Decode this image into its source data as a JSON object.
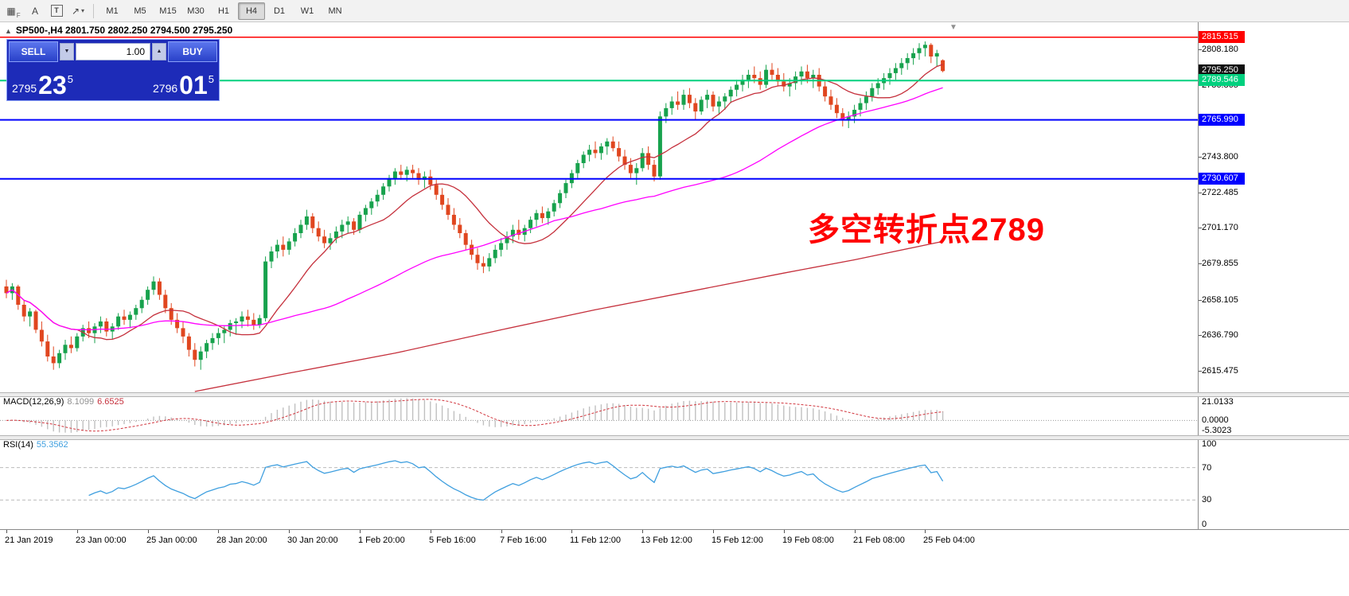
{
  "colors": {
    "up": "#17a24d",
    "down": "#e0461f",
    "ma_fast": "#c5303c",
    "ma_mid": "#ff00ff",
    "ma_slow": "#c5303c",
    "line_red": "#ff0000",
    "line_green": "#00d07e",
    "line_blue": "#0000ff",
    "price_badge_black": "#111111",
    "macd_hist": "#c0c0c0",
    "macd_signal": "#d1343c",
    "rsi_line": "#3f9fdf",
    "annotation": "#ff0000",
    "trade_panel_bg": "#1d2bb8",
    "trade_border": "#8aa0f8",
    "trade_btn_light": "#5b76ee",
    "trade_btn_dark": "#2840c8"
  },
  "toolbar": {
    "tools": [
      {
        "id": "chart-grid",
        "glyph": "▦",
        "sub": "F"
      },
      {
        "id": "text-label",
        "glyph": "A"
      },
      {
        "id": "text-box",
        "glyph": "T",
        "boxed": true
      },
      {
        "id": "line-studies",
        "glyph": "↗",
        "dropdown": true
      }
    ],
    "timeframes": [
      "M1",
      "M5",
      "M15",
      "M30",
      "H1",
      "H4",
      "D1",
      "W1",
      "MN"
    ],
    "active_timeframe": "H4"
  },
  "symbol_header": {
    "collapse_icon": "▲",
    "symbol": "SP500-,H4",
    "ohlc": "2801.750 2802.250 2794.500 2795.250"
  },
  "trade_panel": {
    "sell_label": "SELL",
    "buy_label": "BUY",
    "lot": "1.00",
    "down_glyph": "▼",
    "up_glyph": "▲",
    "sell_small": "2795",
    "sell_big": "23",
    "sell_sup": "5",
    "buy_small": "2796",
    "buy_big": "01",
    "buy_sup": "5"
  },
  "annotation": {
    "text": "多空转折点2789"
  },
  "glyphs": {
    "shift_marker": "▼"
  },
  "price_axis": {
    "gridline_labels": [
      "2808.180",
      "2786.865",
      "2765.550",
      "2743.800",
      "2722.485",
      "2701.170",
      "2679.855",
      "2658.105",
      "2636.790",
      "2615.475"
    ],
    "line_badges": [
      {
        "price": "2815.515",
        "value": 2815.515,
        "color": "#ff0000",
        "text_color": "#ffffff"
      },
      {
        "price": "2795.250",
        "value": 2795.25,
        "color": "#111111",
        "text_color": "#ffffff"
      },
      {
        "price": "2789.546",
        "value": 2789.546,
        "color": "#00d07e",
        "text_color": "#ffffff"
      },
      {
        "price": "2765.990",
        "value": 2765.99,
        "color": "#0000ff",
        "text_color": "#ffffff"
      },
      {
        "price": "2730.607",
        "value": 2730.607,
        "color": "#0000ff",
        "text_color": "#ffffff"
      }
    ]
  },
  "hlines": [
    {
      "value": 2815.515,
      "color": "#ff0000",
      "width": 1.5
    },
    {
      "value": 2789.546,
      "color": "#00d07e",
      "width": 2
    },
    {
      "value": 2765.99,
      "color": "#0000ff",
      "width": 2
    },
    {
      "value": 2730.607,
      "color": "#0000ff",
      "width": 2
    }
  ],
  "macd_panel": {
    "label": "MACD(12,26,9)",
    "value1": "8.1099",
    "value2": "6.6525",
    "axis": [
      "21.0133",
      "0.0000",
      "-5.3023"
    ]
  },
  "rsi_panel": {
    "label": "RSI(14)",
    "value": "55.3562",
    "axis": [
      "100",
      "70",
      "30",
      "0"
    ],
    "levels": [
      70,
      30
    ]
  },
  "time_axis": {
    "labels": [
      {
        "idx": 0,
        "text": "21 Jan 2019"
      },
      {
        "idx": 12,
        "text": "23 Jan 00:00"
      },
      {
        "idx": 24,
        "text": "25 Jan 00:00"
      },
      {
        "idx": 36,
        "text": "28 Jan 20:00"
      },
      {
        "idx": 48,
        "text": "30 Jan 20:00"
      },
      {
        "idx": 60,
        "text": "1 Feb 20:00"
      },
      {
        "idx": 72,
        "text": "5 Feb 16:00"
      },
      {
        "idx": 84,
        "text": "7 Feb 16:00"
      },
      {
        "idx": 96,
        "text": "11 Feb 12:00"
      },
      {
        "idx": 108,
        "text": "13 Feb 12:00"
      },
      {
        "idx": 120,
        "text": "15 Feb 12:00"
      },
      {
        "idx": 132,
        "text": "19 Feb 08:00"
      },
      {
        "idx": 144,
        "text": "21 Feb 08:00"
      },
      {
        "idx": 156,
        "text": "25 Feb 04:00"
      }
    ]
  },
  "chart_data": {
    "type": "candlestick",
    "symbol": "SP500-",
    "timeframe": "H4",
    "last_candle": {
      "open": 2801.75,
      "high": 2802.25,
      "low": 2794.5,
      "close": 2795.25
    },
    "price_max": 2824.5,
    "price_min": 2602.5,
    "ma_fast_period": 13,
    "ma_mid_period": 50,
    "ma_long_waypoints": [
      [
        32,
        2603
      ],
      [
        48,
        2614
      ],
      [
        66,
        2626
      ],
      [
        84,
        2640
      ],
      [
        100,
        2652
      ],
      [
        116,
        2663
      ],
      [
        132,
        2674
      ],
      [
        144,
        2682
      ],
      [
        159,
        2693
      ]
    ],
    "candles": [
      [
        2666,
        2670,
        2659,
        2662
      ],
      [
        2662,
        2668,
        2658,
        2666
      ],
      [
        2666,
        2667,
        2652,
        2655
      ],
      [
        2655,
        2658,
        2645,
        2648
      ],
      [
        2648,
        2653,
        2642,
        2651
      ],
      [
        2651,
        2652,
        2638,
        2640
      ],
      [
        2640,
        2645,
        2630,
        2633
      ],
      [
        2633,
        2637,
        2621,
        2624
      ],
      [
        2624,
        2630,
        2616,
        2620
      ],
      [
        2620,
        2628,
        2617,
        2626
      ],
      [
        2626,
        2634,
        2622,
        2631
      ],
      [
        2631,
        2636,
        2626,
        2629
      ],
      [
        2629,
        2638,
        2627,
        2636
      ],
      [
        2636,
        2643,
        2633,
        2641
      ],
      [
        2641,
        2645,
        2635,
        2638
      ],
      [
        2638,
        2644,
        2632,
        2642
      ],
      [
        2642,
        2648,
        2638,
        2645
      ],
      [
        2645,
        2647,
        2636,
        2639
      ],
      [
        2639,
        2644,
        2634,
        2642
      ],
      [
        2642,
        2650,
        2640,
        2648
      ],
      [
        2648,
        2652,
        2643,
        2646
      ],
      [
        2646,
        2651,
        2641,
        2649
      ],
      [
        2649,
        2655,
        2646,
        2653
      ],
      [
        2653,
        2660,
        2650,
        2658
      ],
      [
        2658,
        2666,
        2655,
        2664
      ],
      [
        2664,
        2672,
        2661,
        2669
      ],
      [
        2669,
        2671,
        2658,
        2661
      ],
      [
        2661,
        2664,
        2650,
        2653
      ],
      [
        2653,
        2656,
        2643,
        2646
      ],
      [
        2646,
        2650,
        2638,
        2641
      ],
      [
        2641,
        2645,
        2632,
        2636
      ],
      [
        2636,
        2638,
        2624,
        2628
      ],
      [
        2628,
        2632,
        2618,
        2622
      ],
      [
        2622,
        2630,
        2616,
        2627
      ],
      [
        2627,
        2634,
        2623,
        2632
      ],
      [
        2632,
        2638,
        2628,
        2635
      ],
      [
        2635,
        2641,
        2631,
        2638
      ],
      [
        2638,
        2642,
        2632,
        2640
      ],
      [
        2640,
        2646,
        2636,
        2644
      ],
      [
        2644,
        2647,
        2637,
        2645
      ],
      [
        2645,
        2651,
        2641,
        2648
      ],
      [
        2648,
        2652,
        2642,
        2646
      ],
      [
        2646,
        2650,
        2640,
        2643
      ],
      [
        2643,
        2649,
        2641,
        2647
      ],
      [
        2647,
        2684,
        2645,
        2681
      ],
      [
        2681,
        2690,
        2677,
        2687
      ],
      [
        2687,
        2694,
        2683,
        2691
      ],
      [
        2691,
        2696,
        2684,
        2688
      ],
      [
        2688,
        2695,
        2685,
        2693
      ],
      [
        2693,
        2701,
        2690,
        2698
      ],
      [
        2698,
        2706,
        2695,
        2703
      ],
      [
        2703,
        2712,
        2700,
        2708
      ],
      [
        2708,
        2710,
        2698,
        2701
      ],
      [
        2701,
        2705,
        2693,
        2696
      ],
      [
        2696,
        2700,
        2689,
        2692
      ],
      [
        2692,
        2698,
        2688,
        2695
      ],
      [
        2695,
        2702,
        2692,
        2699
      ],
      [
        2699,
        2706,
        2695,
        2703
      ],
      [
        2703,
        2708,
        2698,
        2705
      ],
      [
        2705,
        2707,
        2697,
        2700
      ],
      [
        2700,
        2711,
        2698,
        2709
      ],
      [
        2709,
        2715,
        2705,
        2713
      ],
      [
        2713,
        2719,
        2709,
        2717
      ],
      [
        2717,
        2724,
        2714,
        2721
      ],
      [
        2721,
        2728,
        2718,
        2726
      ],
      [
        2726,
        2733,
        2723,
        2731
      ],
      [
        2731,
        2737,
        2727,
        2735
      ],
      [
        2735,
        2739,
        2730,
        2733
      ],
      [
        2733,
        2738,
        2729,
        2736
      ],
      [
        2736,
        2739,
        2731,
        2734
      ],
      [
        2734,
        2737,
        2727,
        2730
      ],
      [
        2730,
        2735,
        2725,
        2732
      ],
      [
        2732,
        2736,
        2724,
        2727
      ],
      [
        2727,
        2730,
        2718,
        2721
      ],
      [
        2721,
        2725,
        2712,
        2715
      ],
      [
        2715,
        2719,
        2706,
        2709
      ],
      [
        2709,
        2713,
        2700,
        2703
      ],
      [
        2703,
        2707,
        2695,
        2698
      ],
      [
        2698,
        2700,
        2688,
        2691
      ],
      [
        2691,
        2694,
        2682,
        2685
      ],
      [
        2685,
        2689,
        2676,
        2680
      ],
      [
        2680,
        2684,
        2674,
        2678
      ],
      [
        2678,
        2686,
        2675,
        2683
      ],
      [
        2683,
        2691,
        2680,
        2688
      ],
      [
        2688,
        2695,
        2684,
        2692
      ],
      [
        2692,
        2699,
        2688,
        2696
      ],
      [
        2696,
        2703,
        2692,
        2700
      ],
      [
        2700,
        2706,
        2694,
        2697
      ],
      [
        2697,
        2703,
        2693,
        2701
      ],
      [
        2701,
        2708,
        2698,
        2706
      ],
      [
        2706,
        2712,
        2702,
        2710
      ],
      [
        2710,
        2714,
        2704,
        2707
      ],
      [
        2707,
        2713,
        2703,
        2711
      ],
      [
        2711,
        2718,
        2708,
        2716
      ],
      [
        2716,
        2724,
        2713,
        2722
      ],
      [
        2722,
        2730,
        2719,
        2728
      ],
      [
        2728,
        2736,
        2725,
        2734
      ],
      [
        2734,
        2742,
        2731,
        2740
      ],
      [
        2740,
        2747,
        2737,
        2745
      ],
      [
        2745,
        2751,
        2741,
        2748
      ],
      [
        2748,
        2753,
        2743,
        2746
      ],
      [
        2746,
        2752,
        2742,
        2750
      ],
      [
        2750,
        2755,
        2745,
        2753
      ],
      [
        2753,
        2756,
        2747,
        2749
      ],
      [
        2749,
        2753,
        2741,
        2744
      ],
      [
        2744,
        2748,
        2736,
        2739
      ],
      [
        2739,
        2743,
        2731,
        2734
      ],
      [
        2734,
        2740,
        2727,
        2737
      ],
      [
        2737,
        2749,
        2735,
        2746
      ],
      [
        2746,
        2750,
        2736,
        2739
      ],
      [
        2739,
        2742,
        2729,
        2732
      ],
      [
        2732,
        2771,
        2730,
        2768
      ],
      [
        2768,
        2776,
        2764,
        2773
      ],
      [
        2773,
        2780,
        2769,
        2777
      ],
      [
        2777,
        2783,
        2772,
        2775
      ],
      [
        2775,
        2784,
        2772,
        2781
      ],
      [
        2781,
        2785,
        2773,
        2776
      ],
      [
        2776,
        2779,
        2766,
        2771
      ],
      [
        2771,
        2780,
        2769,
        2778
      ],
      [
        2778,
        2784,
        2773,
        2781
      ],
      [
        2781,
        2783,
        2771,
        2774
      ],
      [
        2774,
        2780,
        2769,
        2777
      ],
      [
        2777,
        2782,
        2772,
        2780
      ],
      [
        2780,
        2786,
        2776,
        2784
      ],
      [
        2784,
        2790,
        2780,
        2787
      ],
      [
        2787,
        2793,
        2783,
        2790
      ],
      [
        2790,
        2796,
        2785,
        2793
      ],
      [
        2793,
        2798,
        2788,
        2791
      ],
      [
        2791,
        2795,
        2784,
        2787
      ],
      [
        2787,
        2799,
        2785,
        2796
      ],
      [
        2796,
        2800,
        2790,
        2793
      ],
      [
        2793,
        2797,
        2786,
        2789
      ],
      [
        2789,
        2794,
        2783,
        2786
      ],
      [
        2786,
        2791,
        2780,
        2788
      ],
      [
        2788,
        2795,
        2784,
        2792
      ],
      [
        2792,
        2798,
        2787,
        2795
      ],
      [
        2795,
        2799,
        2788,
        2791
      ],
      [
        2791,
        2796,
        2785,
        2793
      ],
      [
        2793,
        2797,
        2783,
        2786
      ],
      [
        2786,
        2789,
        2777,
        2780
      ],
      [
        2780,
        2784,
        2772,
        2775
      ],
      [
        2775,
        2779,
        2767,
        2770
      ],
      [
        2770,
        2773,
        2762,
        2766
      ],
      [
        2766,
        2771,
        2761,
        2768
      ],
      [
        2768,
        2775,
        2764,
        2772
      ],
      [
        2772,
        2779,
        2768,
        2776
      ],
      [
        2776,
        2783,
        2772,
        2780
      ],
      [
        2780,
        2788,
        2777,
        2785
      ],
      [
        2785,
        2791,
        2781,
        2788
      ],
      [
        2788,
        2794,
        2784,
        2791
      ],
      [
        2791,
        2797,
        2787,
        2794
      ],
      [
        2794,
        2800,
        2790,
        2797
      ],
      [
        2797,
        2803,
        2793,
        2800
      ],
      [
        2800,
        2806,
        2796,
        2803
      ],
      [
        2803,
        2809,
        2799,
        2806
      ],
      [
        2806,
        2812,
        2802,
        2809
      ],
      [
        2809,
        2813,
        2804,
        2811
      ],
      [
        2811,
        2812,
        2800,
        2804
      ],
      [
        2804,
        2808,
        2798,
        2806
      ],
      [
        2801.75,
        2802.25,
        2794.5,
        2795.25
      ]
    ]
  }
}
